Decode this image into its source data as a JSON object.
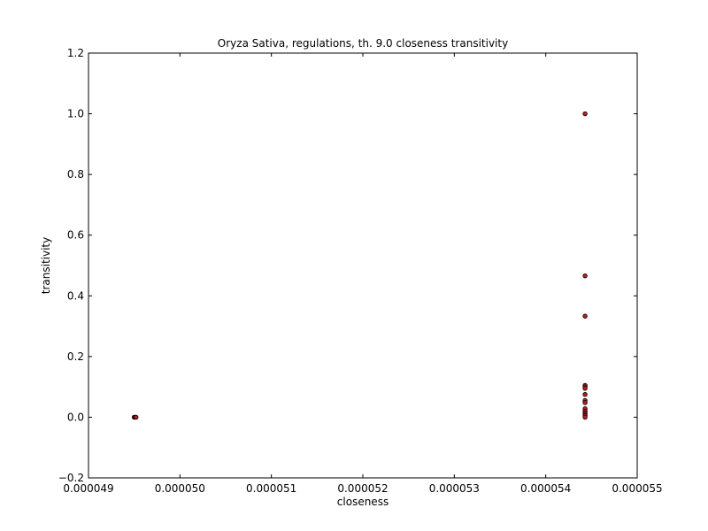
{
  "chart_data": {
    "type": "scatter",
    "title": "Oryza Sativa, regulations, th. 9.0 closeness transitivity",
    "xlabel": "closeness",
    "ylabel": "transitivity",
    "xlim": [
      4.9e-05,
      5.5e-05
    ],
    "ylim": [
      -0.2,
      1.2
    ],
    "xticks": [
      4.9e-05,
      5e-05,
      5.1e-05,
      5.2e-05,
      5.3e-05,
      5.4e-05,
      5.5e-05
    ],
    "xtick_labels": [
      "0.000049",
      "0.000050",
      "0.000051",
      "0.000052",
      "0.000053",
      "0.000054",
      "0.000055"
    ],
    "yticks": [
      -0.2,
      0.0,
      0.2,
      0.4,
      0.6,
      0.8,
      1.0,
      1.2
    ],
    "ytick_labels": [
      "−0.2",
      "0.0",
      "0.2",
      "0.4",
      "0.6",
      "0.8",
      "1.0",
      "1.2"
    ],
    "grid": false,
    "colors": {
      "marker_fill": "#b22222",
      "marker_edge": "#000000"
    },
    "series": [
      {
        "points": [
          {
            "x": 4.95e-05,
            "y": 0.0
          },
          {
            "x": 4.951e-05,
            "y": 0.0
          },
          {
            "x": 4.952e-05,
            "y": 0.0
          },
          {
            "x": 5.443e-05,
            "y": 1.0
          },
          {
            "x": 5.443e-05,
            "y": 0.466
          },
          {
            "x": 5.443e-05,
            "y": 0.333
          },
          {
            "x": 5.443e-05,
            "y": 0.105
          },
          {
            "x": 5.443e-05,
            "y": 0.1
          },
          {
            "x": 5.443e-05,
            "y": 0.095
          },
          {
            "x": 5.443e-05,
            "y": 0.075
          },
          {
            "x": 5.443e-05,
            "y": 0.055
          },
          {
            "x": 5.443e-05,
            "y": 0.048
          },
          {
            "x": 5.443e-05,
            "y": 0.028
          },
          {
            "x": 5.443e-05,
            "y": 0.02
          },
          {
            "x": 5.443e-05,
            "y": 0.015
          },
          {
            "x": 5.443e-05,
            "y": 0.01
          },
          {
            "x": 5.443e-05,
            "y": 0.005
          },
          {
            "x": 5.443e-05,
            "y": 0.0
          }
        ]
      }
    ]
  }
}
